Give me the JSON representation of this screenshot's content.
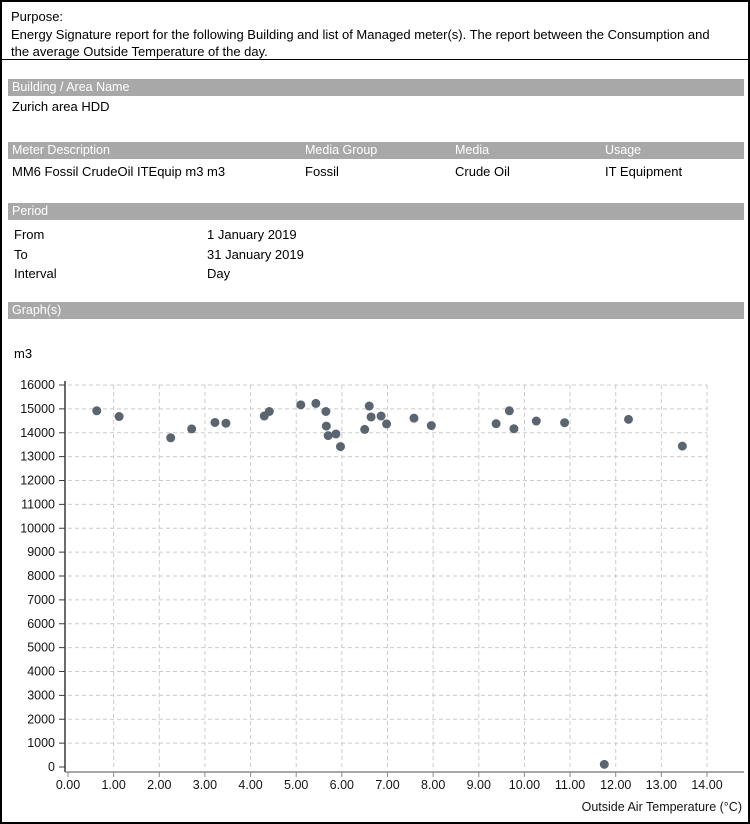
{
  "purpose": {
    "label": "Purpose:",
    "text": "Energy Signature report for the following Building and list of Managed meter(s). The report between the Consumption and the average Outside Temperature of the day."
  },
  "building": {
    "header": "Building / Area Name",
    "name": "Zurich area HDD"
  },
  "meter_table": {
    "headers": [
      "Meter Description",
      "Media Group",
      "Media",
      "Usage"
    ],
    "rows": [
      [
        "MM6 Fossil CrudeOil ITEquip m3 m3",
        "Fossil",
        "Crude Oil",
        "IT Equipment"
      ]
    ]
  },
  "period": {
    "header": "Period",
    "rows": [
      {
        "label": "From",
        "value": "1 January 2019"
      },
      {
        "label": "To",
        "value": "31 January 2019"
      },
      {
        "label": "Interval",
        "value": "Day"
      }
    ]
  },
  "graphs": {
    "header": "Graph(s)"
  },
  "chart_data": {
    "type": "scatter",
    "title": "",
    "unit_label": "m3",
    "xlabel": "Outside Air Temperature (°C)",
    "ylabel": "m3",
    "xlim": [
      0,
      14
    ],
    "ylim": [
      0,
      16000
    ],
    "x_tick_step": 1,
    "y_tick_step": 1000,
    "x_tick_format": "two_decimals",
    "grid": "dashed",
    "legend": "none",
    "point_color": "#5b6570",
    "points": [
      [
        0.63,
        14920
      ],
      [
        1.12,
        14680
      ],
      [
        2.25,
        13790
      ],
      [
        2.71,
        14160
      ],
      [
        3.22,
        14430
      ],
      [
        3.46,
        14400
      ],
      [
        4.3,
        14700
      ],
      [
        4.41,
        14890
      ],
      [
        5.1,
        15170
      ],
      [
        5.43,
        15230
      ],
      [
        5.65,
        14890
      ],
      [
        5.66,
        14280
      ],
      [
        5.7,
        13880
      ],
      [
        5.87,
        13950
      ],
      [
        5.97,
        13420
      ],
      [
        6.5,
        14140
      ],
      [
        6.6,
        15120
      ],
      [
        6.64,
        14660
      ],
      [
        6.86,
        14700
      ],
      [
        6.98,
        14370
      ],
      [
        7.58,
        14610
      ],
      [
        7.96,
        14300
      ],
      [
        9.38,
        14380
      ],
      [
        9.67,
        14920
      ],
      [
        9.77,
        14170
      ],
      [
        10.26,
        14490
      ],
      [
        10.88,
        14420
      ],
      [
        11.75,
        110
      ],
      [
        12.28,
        14560
      ],
      [
        13.46,
        13440
      ]
    ]
  },
  "colors": {
    "section_header_bg": "#a8a8a8",
    "section_header_text": "#ffffff",
    "gridline": "#cbcbcb",
    "point": "#5b6570"
  }
}
